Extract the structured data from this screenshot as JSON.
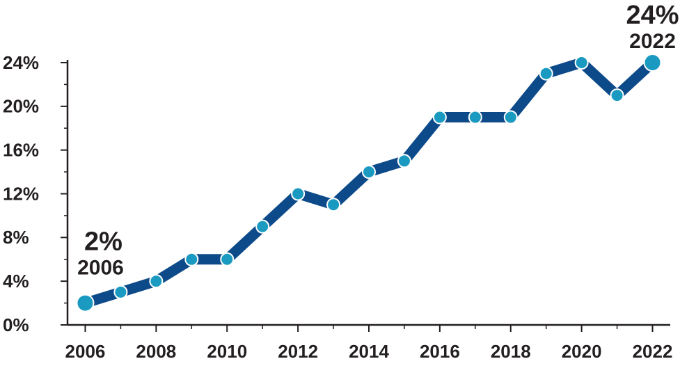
{
  "chart_data": {
    "type": "line",
    "x": [
      2006,
      2007,
      2008,
      2009,
      2010,
      2011,
      2012,
      2013,
      2014,
      2015,
      2016,
      2017,
      2018,
      2019,
      2020,
      2021,
      2022
    ],
    "series": [
      {
        "color": "#0d4a8a",
        "marker_color": "#1a9ac0",
        "values": [
          2,
          3,
          4,
          6,
          6,
          9,
          12,
          11,
          14,
          15,
          19,
          19,
          19,
          23,
          24,
          21,
          24
        ]
      }
    ],
    "xlim": [
      2005.5,
      2022.5
    ],
    "xticks": [
      2006,
      2008,
      2010,
      2012,
      2014,
      2016,
      2018,
      2020,
      2022
    ],
    "ylim": [
      0,
      24
    ],
    "yticks": [
      {
        "value": 0,
        "label": "0%"
      },
      {
        "value": 4,
        "label": "4%"
      },
      {
        "value": 8,
        "label": "8%"
      },
      {
        "value": 12,
        "label": "12%"
      },
      {
        "value": 16,
        "label": "16%"
      },
      {
        "value": 20,
        "label": "20%"
      },
      {
        "value": 24,
        "label": "24%"
      }
    ],
    "annotations": [
      {
        "label": "2%",
        "sublabel": "2006"
      },
      {
        "label": "24%",
        "sublabel": "2022"
      }
    ]
  }
}
